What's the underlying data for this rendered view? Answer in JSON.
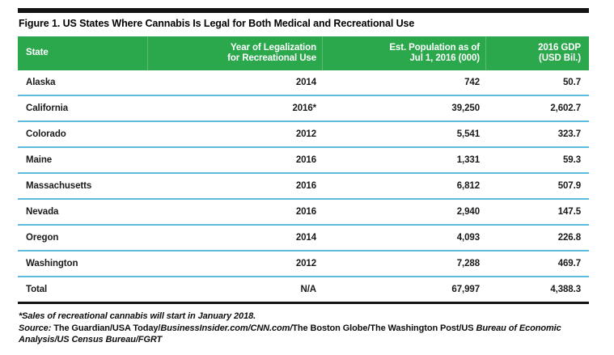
{
  "figure": {
    "title": "Figure 1. US States Where Cannabis Is Legal for Both Medical and Recreational Use"
  },
  "chart_data": {
    "type": "table",
    "title": "Figure 1. US States Where Cannabis Is Legal for Both Medical and Recreational Use",
    "columns": [
      "State",
      "Year of Legalization for Recreational Use",
      "Est. Population as of Jul 1, 2016 (000)",
      "2016 GDP (USD Bil.)"
    ],
    "header_lines": [
      [
        "State"
      ],
      [
        "Year of Legalization",
        "for Recreational Use"
      ],
      [
        "Est. Population as of",
        "Jul 1, 2016 (000)"
      ],
      [
        "2016 GDP",
        "(USD Bil.)"
      ]
    ],
    "rows": [
      [
        "Alaska",
        "2014",
        "742",
        "50.7"
      ],
      [
        "California",
        "2016*",
        "39,250",
        "2,602.7"
      ],
      [
        "Colorado",
        "2012",
        "5,541",
        "323.7"
      ],
      [
        "Maine",
        "2016",
        "1,331",
        "59.3"
      ],
      [
        "Massachusetts",
        "2016",
        "6,812",
        "507.9"
      ],
      [
        "Nevada",
        "2016",
        "2,940",
        "147.5"
      ],
      [
        "Oregon",
        "2014",
        "4,093",
        "226.8"
      ],
      [
        "Washington",
        "2012",
        "7,288",
        "469.7"
      ],
      [
        "Total",
        "N/A",
        "67,997",
        "4,388.3"
      ]
    ],
    "footnote": "*Sales of recreational cannabis will start in January 2018.",
    "source": "Source: The Guardian/USA Today/BusinessInsider.com/CNN.com/The Boston Globe/The Washington Post/US Bureau of Economic Analysis/US Census Bureau/FGRT",
    "source_segments": [
      "Source:",
      " The Guardian/USA Today/",
      "BusinessInsider.com/CNN.com/",
      "The Boston Globe/The Washington Post/US ",
      "Bureau of Economic Analysis/US Census Bureau/FGRT"
    ]
  },
  "colors": {
    "header_green": "#2BA84C",
    "row_divider_blue": "#5BBCDE",
    "rule_black": "#141414"
  }
}
